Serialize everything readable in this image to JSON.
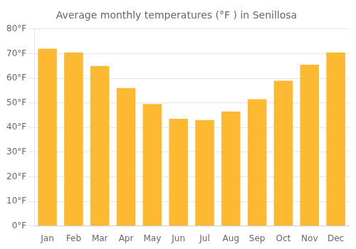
{
  "chart_data": {
    "type": "bar",
    "title": "Average monthly temperatures (°F ) in Senillosa",
    "categories": [
      "Jan",
      "Feb",
      "Mar",
      "Apr",
      "May",
      "Jun",
      "Jul",
      "Aug",
      "Sep",
      "Oct",
      "Nov",
      "Dec"
    ],
    "values": [
      72,
      70.5,
      65,
      56,
      49.5,
      43.5,
      43,
      46.5,
      51.5,
      59,
      65.5,
      70.5
    ],
    "color": "#FDB931",
    "ylim": [
      0,
      80
    ],
    "yticks": [
      {
        "value": 0,
        "label": "0°F"
      },
      {
        "value": 10,
        "label": "10°F"
      },
      {
        "value": 20,
        "label": "20°F"
      },
      {
        "value": 30,
        "label": "30°F"
      },
      {
        "value": 40,
        "label": "40°F"
      },
      {
        "value": 50,
        "label": "50°F"
      },
      {
        "value": 60,
        "label": "60°F"
      },
      {
        "value": 70,
        "label": "70°F"
      },
      {
        "value": 80,
        "label": "80°F"
      }
    ],
    "grid": true
  }
}
